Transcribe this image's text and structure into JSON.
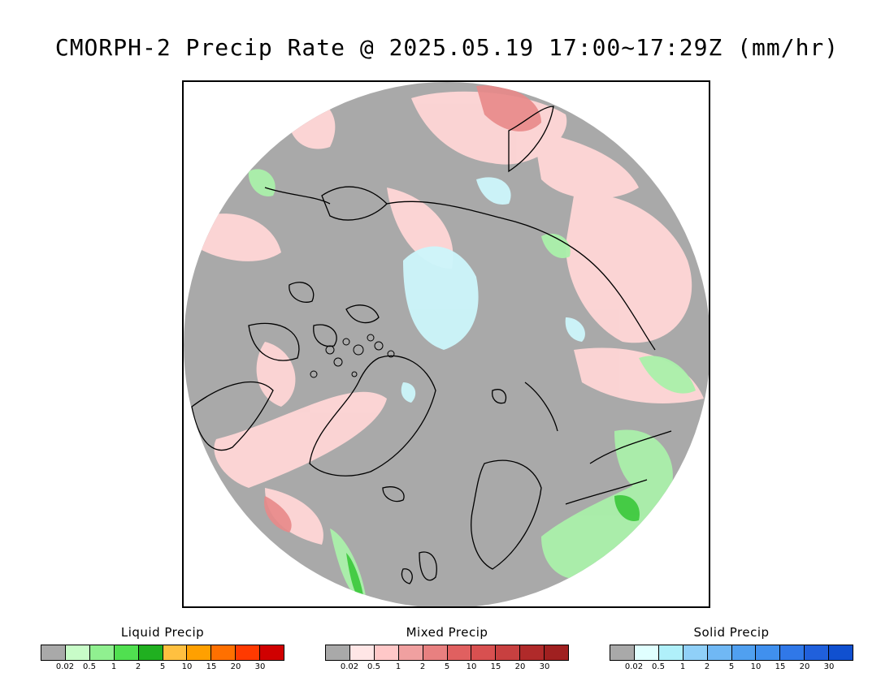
{
  "title": "CMORPH-2 Precip Rate @ 2025.05.19 17:00~17:29Z (mm/hr)",
  "colors": {
    "background": "#a9a9a9",
    "coastline": "#000000",
    "mixed_light": "#ffd6d6",
    "mixed_mid": "#e88888",
    "liquid_light": "#aaf0aa",
    "liquid_mid": "#3ac83a",
    "solid_light": "#ccf6fb"
  },
  "legends": [
    {
      "title": "Liquid Precip",
      "colors": [
        "#a9a9a9",
        "#c8fcc8",
        "#90f090",
        "#50e050",
        "#20b020",
        "#ffc040",
        "#ffa000",
        "#ff7000",
        "#ff3a00",
        "#d00000"
      ],
      "ticks": [
        "0.02",
        "0.5",
        "1",
        "2",
        "5",
        "10",
        "15",
        "20",
        "30"
      ]
    },
    {
      "title": "Mixed Precip",
      "colors": [
        "#a9a9a9",
        "#ffe6e6",
        "#ffc8c8",
        "#f0a0a0",
        "#e88080",
        "#e06060",
        "#d85050",
        "#c84040",
        "#b02a2a",
        "#a02020"
      ],
      "ticks": [
        "0.02",
        "0.5",
        "1",
        "2",
        "5",
        "10",
        "15",
        "20",
        "30"
      ]
    },
    {
      "title": "Solid Precip",
      "colors": [
        "#a9a9a9",
        "#e0ffff",
        "#b0f0fa",
        "#90d0f8",
        "#70b8f4",
        "#50a0f0",
        "#4090ee",
        "#3078e8",
        "#2060dc",
        "#1050d0"
      ],
      "ticks": [
        "0.02",
        "0.5",
        "1",
        "2",
        "5",
        "10",
        "15",
        "20",
        "30"
      ]
    }
  ]
}
